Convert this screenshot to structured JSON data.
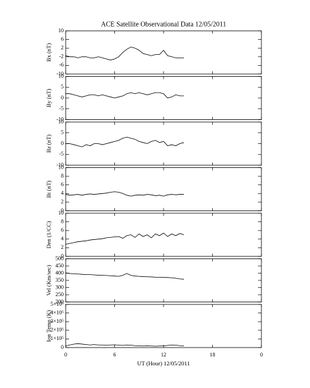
{
  "chart_data": [
    {
      "type": "line",
      "title": "ACE Satellite Observational Data   12/05/2011",
      "ylabel": "Bx (nT)",
      "color": "#000000",
      "x": [
        0,
        0.5,
        1,
        1.5,
        2,
        2.5,
        3,
        3.5,
        4,
        4.5,
        5,
        5.5,
        6,
        6.5,
        7,
        7.5,
        8,
        8.5,
        9,
        9.5,
        10,
        10.5,
        11,
        11.5,
        12,
        12.5,
        13,
        13.5,
        14,
        14.5
      ],
      "values": [
        -1.5,
        -2,
        -2,
        -2.5,
        -2,
        -2,
        -2.5,
        -2.5,
        -2,
        -2.5,
        -3,
        -3.5,
        -3,
        -2,
        0,
        1.5,
        2.5,
        2,
        1,
        -0.5,
        -1,
        -1.5,
        -1,
        -1,
        1,
        -1.5,
        -2,
        -2.5,
        -2.5,
        -2.5
      ],
      "xlim": [
        0,
        24
      ],
      "xticks": [
        0,
        6,
        12,
        18,
        {
          "value": 24,
          "label": "0"
        }
      ],
      "ylim": [
        -10,
        10
      ],
      "yticks": [
        -10,
        -6,
        -2,
        2,
        6,
        10
      ]
    },
    {
      "type": "line",
      "ylabel": "By (nT)",
      "color": "#000000",
      "x": [
        0,
        0.5,
        1,
        1.5,
        2,
        2.5,
        3,
        3.5,
        4,
        4.5,
        5,
        5.5,
        6,
        6.5,
        7,
        7.5,
        8,
        8.5,
        9,
        9.5,
        10,
        10.5,
        11,
        11.5,
        12,
        12.5,
        13,
        13.5,
        14,
        14.5
      ],
      "values": [
        2,
        2,
        1.5,
        1,
        0.5,
        1,
        1.5,
        1.5,
        1,
        1.5,
        1,
        0.5,
        0,
        0.5,
        1,
        2,
        2.5,
        2,
        2.5,
        2,
        1.5,
        2,
        2.5,
        2.5,
        2,
        0,
        0.5,
        1.5,
        1,
        1
      ],
      "xlim": [
        0,
        24
      ],
      "xticks": [
        0,
        6,
        12,
        18,
        {
          "value": 24,
          "label": "0"
        }
      ],
      "ylim": [
        -10,
        10
      ],
      "yticks": [
        -10,
        -5,
        0,
        5,
        10
      ]
    },
    {
      "type": "line",
      "ylabel": "Bz (nT)",
      "color": "#000000",
      "x": [
        0,
        0.5,
        1,
        1.5,
        2,
        2.5,
        3,
        3.5,
        4,
        4.5,
        5,
        5.5,
        6,
        6.5,
        7,
        7.5,
        8,
        8.5,
        9,
        9.5,
        10,
        10.5,
        11,
        11.5,
        12,
        12.5,
        13,
        13.5,
        14,
        14.5
      ],
      "values": [
        0,
        0,
        -0.5,
        -1,
        -1.5,
        -0.5,
        -1,
        0,
        0,
        -0.5,
        0,
        0.5,
        1,
        1.5,
        2.5,
        3,
        2.5,
        2,
        1,
        0.5,
        0,
        1,
        1.5,
        0.5,
        1,
        -1,
        -0.5,
        -1,
        0,
        0.5
      ],
      "xlim": [
        0,
        24
      ],
      "xticks": [
        0,
        6,
        12,
        18,
        {
          "value": 24,
          "label": "0"
        }
      ],
      "ylim": [
        -10,
        10
      ],
      "yticks": [
        -10,
        -5,
        0,
        5,
        10
      ]
    },
    {
      "type": "line",
      "ylabel": "Bt (nT)",
      "color": "#000000",
      "x": [
        0,
        0.5,
        1,
        1.5,
        2,
        2.5,
        3,
        3.5,
        4,
        4.5,
        5,
        5.5,
        6,
        6.5,
        7,
        7.5,
        8,
        8.5,
        9,
        9.5,
        10,
        10.5,
        11,
        11.5,
        12,
        12.5,
        13,
        13.5,
        14,
        14.5
      ],
      "values": [
        3.8,
        3.6,
        3.7,
        3.8,
        3.6,
        3.8,
        3.9,
        3.8,
        3.9,
        4,
        4.1,
        4.3,
        4.4,
        4.3,
        4,
        3.6,
        3.4,
        3.6,
        3.7,
        3.6,
        3.8,
        3.7,
        3.5,
        3.6,
        3.4,
        3.7,
        3.8,
        3.7,
        3.8,
        3.8
      ],
      "xlim": [
        0,
        24
      ],
      "xticks": [
        0,
        6,
        12,
        18,
        {
          "value": 24,
          "label": "0"
        }
      ],
      "ylim": [
        0,
        10
      ],
      "yticks": [
        0,
        2,
        4,
        6,
        8,
        10
      ]
    },
    {
      "type": "line",
      "ylabel": "Den (1/CC)",
      "color": "#000000",
      "x": [
        0,
        0.5,
        1,
        1.5,
        2,
        2.5,
        3,
        3.5,
        4,
        4.5,
        5,
        5.5,
        6,
        6.5,
        7,
        7.5,
        8,
        8.5,
        9,
        9.5,
        10,
        10.5,
        11,
        11.5,
        12,
        12.5,
        13,
        13.5,
        14,
        14.5
      ],
      "values": [
        2.8,
        3,
        3.2,
        3.4,
        3.5,
        3.6,
        3.8,
        3.9,
        4,
        4.1,
        4.3,
        4.4,
        4.5,
        4.6,
        4.2,
        4.8,
        5,
        4.4,
        5.2,
        4.6,
        5,
        4.3,
        5.2,
        4.8,
        5.4,
        4.6,
        5.2,
        4.8,
        5.3,
        5
      ],
      "xlim": [
        0,
        24
      ],
      "xticks": [
        0,
        6,
        12,
        18,
        {
          "value": 24,
          "label": "0"
        }
      ],
      "ylim": [
        0,
        10
      ],
      "yticks": [
        0,
        2,
        4,
        6,
        8,
        10
      ]
    },
    {
      "type": "line",
      "ylabel": "Vel (Km/sec)",
      "color": "#000000",
      "x": [
        0,
        0.5,
        1,
        1.5,
        2,
        2.5,
        3,
        3.5,
        4,
        4.5,
        5,
        5.5,
        6,
        6.5,
        7,
        7.5,
        8,
        8.5,
        9,
        9.5,
        10,
        10.5,
        11,
        11.5,
        12,
        12.5,
        13,
        13.5,
        14,
        14.5
      ],
      "values": [
        402,
        398,
        396,
        394,
        392,
        390,
        390,
        388,
        386,
        385,
        384,
        382,
        380,
        378,
        385,
        398,
        385,
        380,
        378,
        376,
        375,
        374,
        372,
        372,
        370,
        370,
        368,
        365,
        360,
        358
      ],
      "xlim": [
        0,
        24
      ],
      "xticks": [
        0,
        6,
        12,
        18,
        {
          "value": 24,
          "label": "0"
        }
      ],
      "ylim": [
        200,
        500
      ],
      "yticks": [
        200,
        250,
        300,
        350,
        400,
        450,
        500
      ]
    },
    {
      "type": "line",
      "ylabel": "Ion Temp (K)",
      "xlabel": "UT (Hour)  12/05/2011",
      "color": "#000000",
      "x": [
        0,
        0.5,
        1,
        1.5,
        2,
        2.5,
        3,
        3.5,
        4,
        4.5,
        5,
        5.5,
        6,
        6.5,
        7,
        7.5,
        8,
        8.5,
        9,
        9.5,
        10,
        10.5,
        11,
        11.5,
        12,
        12.5,
        13,
        13.5,
        14,
        14.5
      ],
      "values": [
        20000,
        30000,
        40000,
        45000,
        40000,
        35000,
        30000,
        35000,
        30000,
        30000,
        28000,
        30000,
        32000,
        28000,
        25000,
        30000,
        28000,
        22000,
        20000,
        18000,
        20000,
        18000,
        16000,
        18000,
        20000,
        25000,
        30000,
        28000,
        22000,
        20000
      ],
      "xlim": [
        0,
        24
      ],
      "xticks": [
        0,
        6,
        12,
        18,
        {
          "value": 24,
          "label": "0"
        }
      ],
      "ylim": [
        0,
        500000
      ],
      "yticks": [
        0,
        {
          "value": 100000,
          "label": "1×10⁵"
        },
        {
          "value": 200000,
          "label": "2×10⁵"
        },
        {
          "value": 300000,
          "label": "3×10⁵"
        },
        {
          "value": 400000,
          "label": "4×10⁵"
        },
        {
          "value": 500000,
          "label": "5×10⁵"
        }
      ]
    }
  ]
}
